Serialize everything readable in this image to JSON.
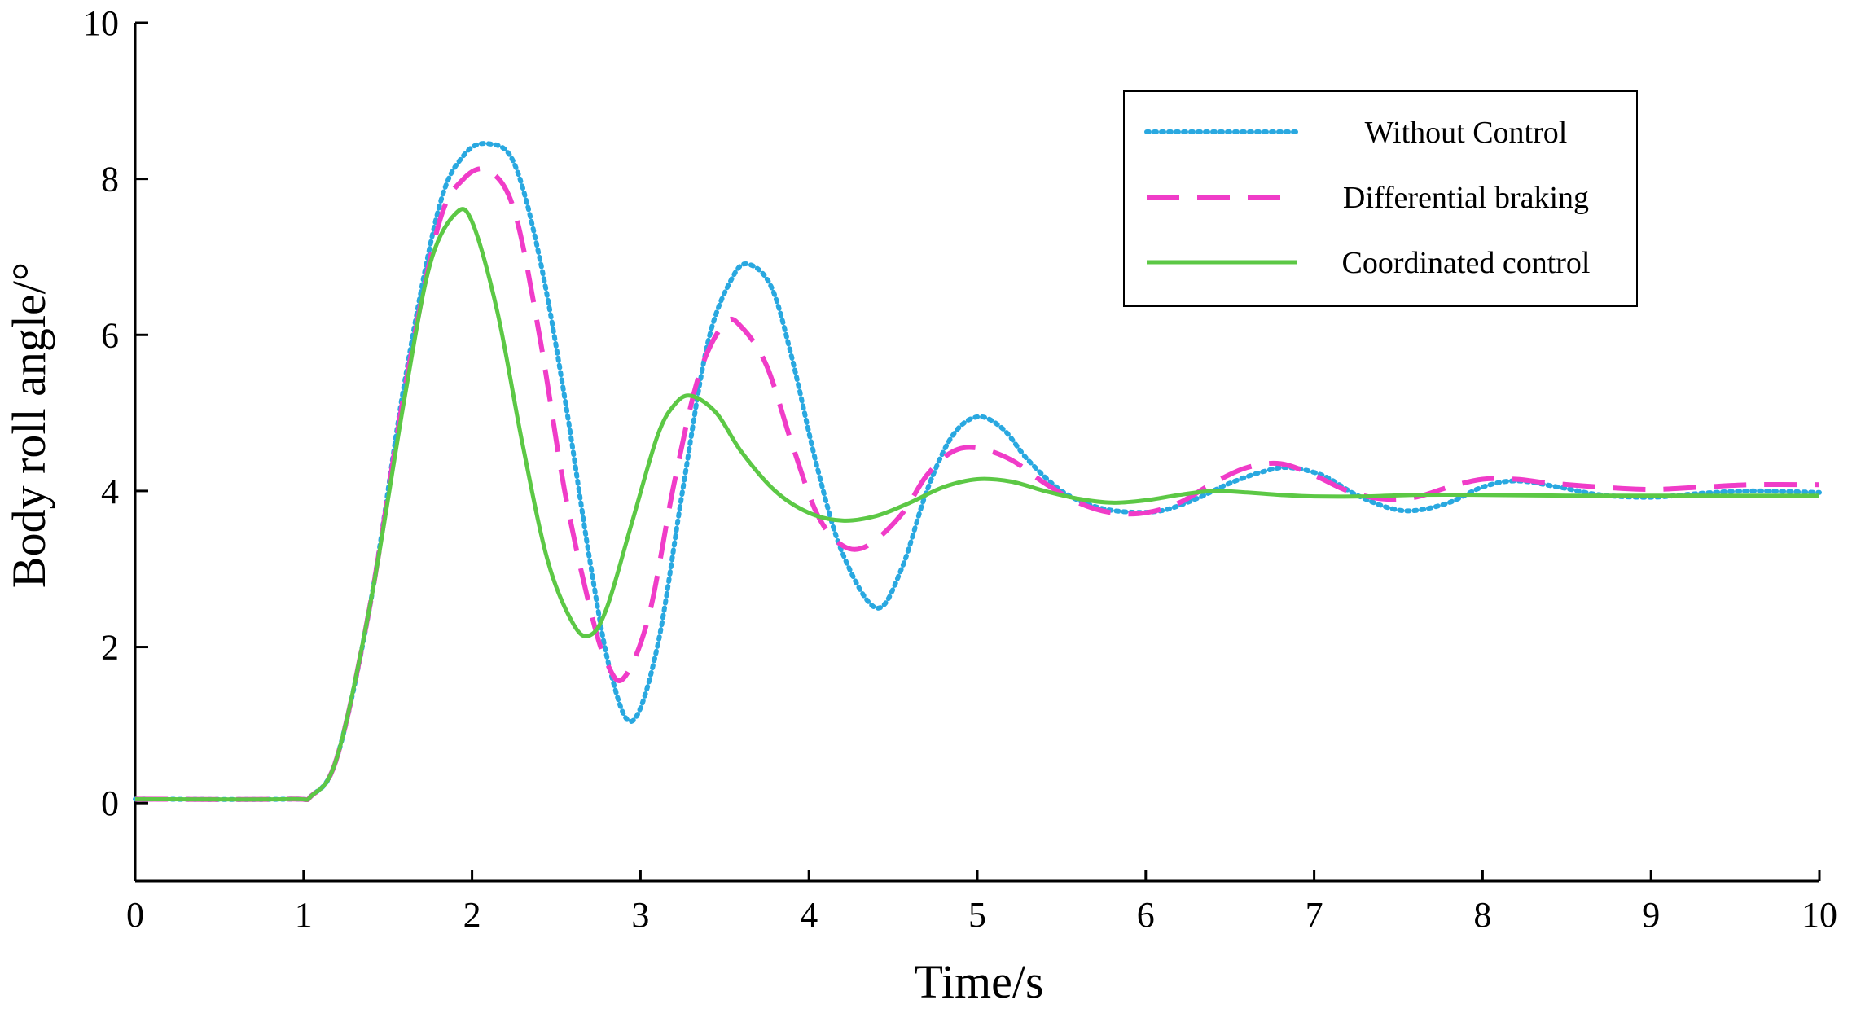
{
  "chart_data": {
    "type": "line",
    "title": "",
    "xlabel": "Time/s",
    "ylabel": "Body roll angle/°",
    "xlim": [
      0,
      10
    ],
    "ylim": [
      -1,
      10
    ],
    "grid": false,
    "legend_position": "top-right",
    "x_ticks": [
      {
        "value": 0,
        "label": "0"
      },
      {
        "value": 1,
        "label": "1"
      },
      {
        "value": 2,
        "label": "2"
      },
      {
        "value": 3,
        "label": "3"
      },
      {
        "value": 4,
        "label": "4"
      },
      {
        "value": 5,
        "label": "5"
      },
      {
        "value": 6,
        "label": "6"
      },
      {
        "value": 7,
        "label": "7"
      },
      {
        "value": 8,
        "label": "8"
      },
      {
        "value": 9,
        "label": "9"
      },
      {
        "value": 10,
        "label": "10"
      }
    ],
    "y_ticks": [
      {
        "value": 0,
        "label": "0"
      },
      {
        "value": 2,
        "label": "2"
      },
      {
        "value": 4,
        "label": "4"
      },
      {
        "value": 6,
        "label": "6"
      },
      {
        "value": 8,
        "label": "8"
      },
      {
        "value": 10,
        "label": "10"
      }
    ],
    "series": [
      {
        "name": "Without Control",
        "color": "#29a8e0",
        "style": "dotted",
        "x": [
          0,
          0.9,
          1.05,
          1.2,
          1.4,
          1.6,
          1.8,
          1.95,
          2.1,
          2.25,
          2.4,
          2.55,
          2.7,
          2.82,
          2.95,
          3.1,
          3.25,
          3.4,
          3.55,
          3.65,
          3.78,
          3.9,
          4.05,
          4.2,
          4.4,
          4.55,
          4.7,
          4.85,
          5.0,
          5.15,
          5.3,
          5.5,
          5.7,
          5.9,
          6.1,
          6.3,
          6.5,
          6.7,
          6.85,
          7.05,
          7.25,
          7.45,
          7.6,
          7.8,
          8.0,
          8.2,
          8.45,
          8.7,
          9.0,
          9.3,
          9.6,
          10.0
        ],
        "y": [
          0.05,
          0.05,
          0.1,
          0.6,
          2.6,
          5.4,
          7.6,
          8.3,
          8.45,
          8.2,
          7.0,
          5.2,
          3.1,
          1.7,
          1.05,
          2.0,
          4.0,
          5.9,
          6.75,
          6.9,
          6.6,
          5.7,
          4.3,
          3.2,
          2.5,
          3.0,
          4.0,
          4.7,
          4.95,
          4.8,
          4.4,
          4.0,
          3.8,
          3.73,
          3.75,
          3.9,
          4.1,
          4.25,
          4.3,
          4.2,
          3.95,
          3.78,
          3.75,
          3.85,
          4.05,
          4.13,
          4.05,
          3.95,
          3.92,
          3.97,
          4.0,
          3.98
        ]
      },
      {
        "name": "Differential braking",
        "color": "#f03cc8",
        "style": "dashed",
        "x": [
          0,
          0.9,
          1.05,
          1.2,
          1.4,
          1.6,
          1.8,
          1.95,
          2.1,
          2.25,
          2.4,
          2.55,
          2.7,
          2.8,
          2.9,
          3.05,
          3.2,
          3.35,
          3.5,
          3.6,
          3.75,
          3.9,
          4.05,
          4.2,
          4.35,
          4.55,
          4.7,
          4.85,
          5.0,
          5.2,
          5.4,
          5.6,
          5.8,
          6.0,
          6.2,
          6.4,
          6.6,
          6.8,
          7.0,
          7.2,
          7.4,
          7.6,
          7.8,
          8.0,
          8.2,
          8.4,
          8.7,
          9.0,
          9.3,
          9.6,
          10.0
        ],
        "y": [
          0.05,
          0.05,
          0.1,
          0.6,
          2.6,
          5.3,
          7.4,
          8.0,
          8.1,
          7.6,
          6.0,
          4.0,
          2.5,
          1.8,
          1.6,
          2.4,
          4.1,
          5.5,
          6.15,
          6.1,
          5.6,
          4.6,
          3.7,
          3.3,
          3.3,
          3.7,
          4.2,
          4.5,
          4.55,
          4.4,
          4.1,
          3.85,
          3.72,
          3.72,
          3.85,
          4.1,
          4.3,
          4.35,
          4.2,
          4.0,
          3.9,
          3.92,
          4.05,
          4.15,
          4.15,
          4.1,
          4.05,
          4.02,
          4.05,
          4.08,
          4.08
        ]
      },
      {
        "name": "Coordinated control",
        "color": "#5cc845",
        "style": "solid",
        "x": [
          0,
          0.9,
          1.05,
          1.2,
          1.4,
          1.6,
          1.75,
          1.9,
          2.0,
          2.15,
          2.3,
          2.45,
          2.6,
          2.7,
          2.8,
          2.95,
          3.1,
          3.2,
          3.3,
          3.45,
          3.6,
          3.8,
          4.0,
          4.2,
          4.4,
          4.6,
          4.8,
          5.0,
          5.2,
          5.4,
          5.6,
          5.8,
          6.0,
          6.2,
          6.4,
          6.6,
          6.8,
          7.0,
          7.3,
          7.6,
          8.0,
          8.5,
          9.0,
          9.5,
          10.0
        ],
        "y": [
          0.05,
          0.05,
          0.1,
          0.6,
          2.6,
          5.2,
          6.9,
          7.55,
          7.45,
          6.3,
          4.6,
          3.1,
          2.3,
          2.15,
          2.5,
          3.6,
          4.7,
          5.1,
          5.22,
          5.0,
          4.5,
          4.0,
          3.72,
          3.62,
          3.68,
          3.85,
          4.05,
          4.15,
          4.12,
          4.0,
          3.9,
          3.85,
          3.88,
          3.95,
          4.0,
          3.98,
          3.95,
          3.93,
          3.93,
          3.95,
          3.95,
          3.94,
          3.94,
          3.94,
          3.94
        ]
      }
    ]
  }
}
